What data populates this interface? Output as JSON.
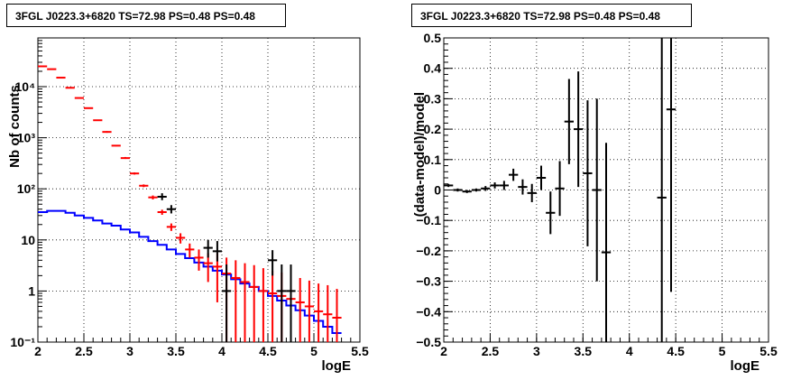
{
  "chart_data": [
    {
      "type": "histogram",
      "title": "3FGL J0223.3+6820 TS=72.98 PS=0.48 PS=0.48",
      "xlabel": "logE",
      "ylabel": "Nb of counts",
      "xlim": [
        2,
        5.5
      ],
      "ylim": [
        0.1,
        90000
      ],
      "yscale": "log",
      "grid": true,
      "x_tick_labels": [
        "2",
        "2.5",
        "3",
        "3.5",
        "4",
        "4.5",
        "5",
        "5.5"
      ],
      "y_tick_labels": [
        {
          "v": 0.1,
          "t": "10⁻¹"
        },
        {
          "v": 1,
          "t": "1"
        },
        {
          "v": 10,
          "t": "10"
        },
        {
          "v": 100,
          "t": "10²"
        },
        {
          "v": 1000,
          "t": "10³"
        },
        {
          "v": 10000,
          "t": "10⁴"
        }
      ],
      "bin_width": 0.1,
      "series": [
        {
          "color": "#0000ff",
          "style": "step",
          "x": [
            2.05,
            2.15,
            2.25,
            2.35,
            2.45,
            2.55,
            2.65,
            2.75,
            2.85,
            2.95,
            3.05,
            3.15,
            3.25,
            3.35,
            3.45,
            3.55,
            3.65,
            3.75,
            3.85,
            3.95,
            4.05,
            4.15,
            4.25,
            4.35,
            4.45,
            4.55,
            4.65,
            4.75,
            4.85,
            4.95,
            5.05,
            5.15,
            5.25
          ],
          "y": [
            35,
            37,
            37,
            34,
            30,
            27,
            24,
            21,
            19,
            16,
            14,
            11.5,
            9.5,
            8,
            6.5,
            5.3,
            4.4,
            3.6,
            3.0,
            2.5,
            2.1,
            1.7,
            1.4,
            1.2,
            1.0,
            0.8,
            0.65,
            0.52,
            0.42,
            0.33,
            0.26,
            0.2,
            0.15
          ]
        },
        {
          "color": "#ff0000",
          "style": "errorbar",
          "x": [
            2.05,
            2.15,
            2.25,
            2.35,
            2.45,
            2.55,
            2.65,
            2.75,
            2.85,
            2.95,
            3.05,
            3.15,
            3.25,
            3.35,
            3.45,
            3.55,
            3.65,
            3.75,
            3.85,
            3.95,
            4.05,
            4.15,
            4.25,
            4.35,
            4.45,
            4.55,
            4.65,
            4.75,
            4.85,
            4.95,
            5.05,
            5.15,
            5.25
          ],
          "y": [
            25000,
            22000,
            15000,
            9500,
            6000,
            3800,
            2200,
            1300,
            700,
            400,
            200,
            115,
            68,
            35,
            18,
            11,
            6.5,
            4.5,
            3.5,
            3.0,
            2.2,
            1.8,
            1.5,
            1.2,
            1.0,
            0.9,
            0.8,
            0.7,
            0.6,
            0.5,
            0.4,
            0.35,
            0.3
          ],
          "y_low": [
            24800,
            21800,
            14800,
            9300,
            5900,
            3700,
            2150,
            1250,
            680,
            385,
            190,
            108,
            62,
            31,
            15,
            8.5,
            4.5,
            2.5,
            1.5,
            0.6,
            0.1,
            0.1,
            0.1,
            0.1,
            0.1,
            0.1,
            0.1,
            0.1,
            0.1,
            0.1,
            0.1,
            0.1,
            0.1
          ],
          "y_high": [
            25200,
            22200,
            15200,
            9700,
            6100,
            3900,
            2250,
            1350,
            720,
            420,
            210,
            122,
            74,
            39,
            21,
            13.5,
            8.5,
            6.5,
            5.5,
            5.5,
            4.5,
            4.0,
            3.5,
            3.2,
            2.8,
            2.5,
            2.3,
            2.0,
            1.8,
            1.6,
            1.4,
            1.3,
            1.1
          ]
        },
        {
          "color": "#000000",
          "style": "errorbar",
          "x": [
            3.35,
            3.45,
            3.85,
            3.95,
            4.05,
            4.55,
            4.65,
            4.75
          ],
          "y": [
            70,
            40,
            7,
            6,
            1,
            4,
            1,
            1
          ],
          "y_low": [
            60,
            33,
            4.5,
            3.8,
            0.1,
            2,
            0.1,
            0.1
          ],
          "y_high": [
            82,
            48,
            10,
            9.5,
            3.3,
            6.3,
            3.3,
            3.3
          ]
        }
      ]
    },
    {
      "type": "scatter",
      "title": "3FGL J0223.3+6820 TS=72.98 PS=0.48 PS=0.48",
      "xlabel": "logE",
      "ylabel": "(data-model)/model",
      "xlim": [
        2,
        5.5
      ],
      "ylim": [
        -0.5,
        0.5
      ],
      "grid": true,
      "x_tick_labels": [
        "2",
        "2.5",
        "3",
        "3.5",
        "4",
        "4.5",
        "5",
        "5.5"
      ],
      "y_tick_labels": [
        "−0.5",
        "−0.4",
        "−0.3",
        "−0.2",
        "−0.1",
        "0",
        "0.1",
        "0.2",
        "0.3",
        "0.4",
        "0.5"
      ],
      "bin_width": 0.1,
      "series": [
        {
          "color": "#000000",
          "style": "errorbar",
          "x": [
            2.05,
            2.15,
            2.25,
            2.35,
            2.45,
            2.55,
            2.65,
            2.75,
            2.85,
            2.95,
            3.05,
            3.15,
            3.25,
            3.35,
            3.45,
            3.55,
            3.65,
            3.75,
            4.35,
            4.45
          ],
          "y": [
            0.015,
            0.0,
            -0.005,
            0.0,
            0.005,
            0.015,
            0.015,
            0.05,
            0.01,
            -0.01,
            0.04,
            -0.075,
            0.005,
            0.225,
            0.2,
            0.055,
            0.0,
            -0.205,
            -0.025,
            0.265
          ],
          "err": [
            0.005,
            0.005,
            0.005,
            0.005,
            0.008,
            0.01,
            0.015,
            0.02,
            0.025,
            0.03,
            0.04,
            0.07,
            0.09,
            0.14,
            0.19,
            0.24,
            0.3,
            0.36,
            0.6,
            0.6
          ]
        }
      ]
    }
  ]
}
